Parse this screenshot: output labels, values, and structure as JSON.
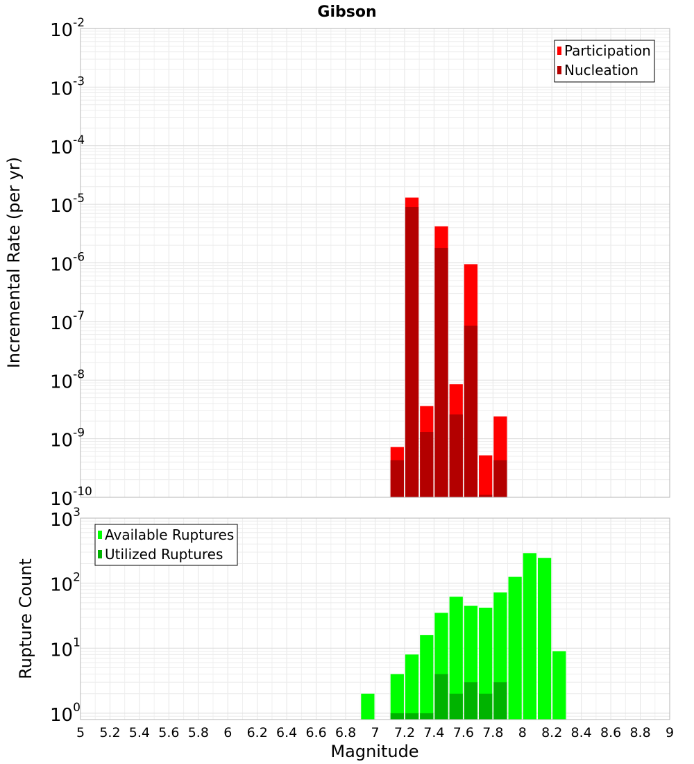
{
  "chart_data": [
    {
      "type": "bar",
      "title": "Gibson",
      "xlabel": "",
      "ylabel": "Incremental Rate (per yr)",
      "y_scale": "log",
      "ylim": [
        1e-10,
        0.01
      ],
      "xlim": [
        5,
        9
      ],
      "grid": true,
      "legend_position": "top-right",
      "bar_width": 0.1,
      "stacking": "overlaid",
      "y_tick_labels": [
        {
          "base": "10",
          "exp": "-10"
        },
        {
          "base": "10",
          "exp": "-9"
        },
        {
          "base": "10",
          "exp": "-8"
        },
        {
          "base": "10",
          "exp": "-7"
        },
        {
          "base": "10",
          "exp": "-6"
        },
        {
          "base": "10",
          "exp": "-5"
        },
        {
          "base": "10",
          "exp": "-4"
        },
        {
          "base": "10",
          "exp": "-3"
        },
        {
          "base": "10",
          "exp": "-2"
        }
      ],
      "series": [
        {
          "name": "Participation",
          "color": "#ff0000",
          "x": [
            7.15,
            7.25,
            7.35,
            7.45,
            7.55,
            7.65,
            7.75,
            7.85
          ],
          "values": [
            7.2e-10,
            1.3e-05,
            3.6e-09,
            4.2e-06,
            8.5e-09,
            9.5e-07,
            5.2e-10,
            2.4e-09
          ]
        },
        {
          "name": "Nucleation",
          "color": "#b30000",
          "x": [
            7.15,
            7.25,
            7.35,
            7.45,
            7.55,
            7.65,
            7.75,
            7.85
          ],
          "values": [
            4.3e-10,
            9e-06,
            1.3e-09,
            1.8e-06,
            2.6e-09,
            8.5e-08,
            1.1e-10,
            4.3e-10
          ]
        }
      ]
    },
    {
      "type": "bar",
      "title": "",
      "xlabel": "Magnitude",
      "ylabel": "Rupture Count",
      "y_scale": "log",
      "ylim": [
        0.8,
        1000
      ],
      "xlim": [
        5,
        9
      ],
      "grid": true,
      "legend_position": "top-left",
      "bar_width": 0.1,
      "stacking": "overlaid",
      "y_tick_labels": [
        {
          "base": "10",
          "exp": "0"
        },
        {
          "base": "10",
          "exp": "1"
        },
        {
          "base": "10",
          "exp": "2"
        },
        {
          "base": "10",
          "exp": "3"
        }
      ],
      "x_tick_labels": [
        "5",
        "5.2",
        "5.4",
        "5.6",
        "5.8",
        "6",
        "6.2",
        "6.4",
        "6.6",
        "6.8",
        "7",
        "7.2",
        "7.4",
        "7.6",
        "7.8",
        "8",
        "8.2",
        "8.4",
        "8.6",
        "8.8",
        "9"
      ],
      "series": [
        {
          "name": "Available Ruptures",
          "color": "#00ff00",
          "x": [
            6.95,
            7.15,
            7.25,
            7.35,
            7.45,
            7.55,
            7.65,
            7.75,
            7.85,
            7.95,
            8.05,
            8.15,
            8.25
          ],
          "values": [
            2,
            4,
            8,
            16,
            35,
            62,
            45,
            42,
            72,
            125,
            290,
            245,
            9
          ]
        },
        {
          "name": "Utilized Ruptures",
          "color": "#00b300",
          "x": [
            7.15,
            7.25,
            7.35,
            7.45,
            7.55,
            7.65,
            7.75,
            7.85
          ],
          "values": [
            1,
            1,
            1,
            4,
            2,
            3,
            2,
            3
          ]
        }
      ]
    }
  ]
}
